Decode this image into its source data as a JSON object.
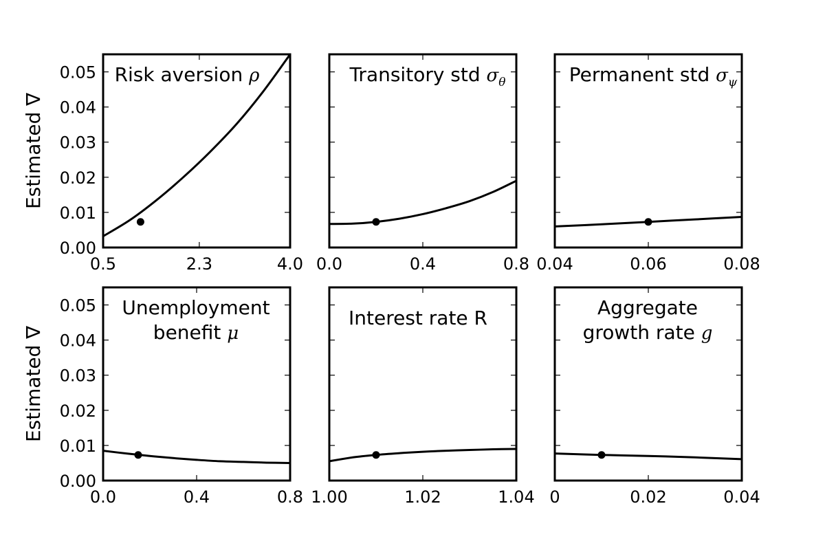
{
  "chart_data": [
    {
      "type": "line",
      "title": "Risk aversion",
      "title_symbol": "ρ",
      "title_subscript": "",
      "ylabel": "Estimated ∇",
      "xlim": [
        0.5,
        4.0
      ],
      "ylim": [
        0.0,
        0.055
      ],
      "xticks": [
        0.5,
        2.3,
        4.0
      ],
      "xtick_labels": [
        "0.5",
        "2.3",
        "4.0"
      ],
      "yticks": [
        0.0,
        0.01,
        0.02,
        0.03,
        0.04,
        0.05
      ],
      "ytick_labels": [
        "0.00",
        "0.01",
        "0.02",
        "0.03",
        "0.04",
        "0.05"
      ],
      "x": [
        0.5,
        1.0,
        1.5,
        2.0,
        2.5,
        3.0,
        3.5,
        4.0
      ],
      "y": [
        0.0032,
        0.0078,
        0.0135,
        0.02,
        0.0272,
        0.0352,
        0.0445,
        0.055
      ],
      "marker": {
        "x": 1.2,
        "y": 0.0073
      }
    },
    {
      "type": "line",
      "title": "Transitory std",
      "title_symbol": "σ",
      "title_subscript": "θ",
      "ylabel": "",
      "xlim": [
        0.0,
        0.8
      ],
      "ylim": [
        0.0,
        0.055
      ],
      "xticks": [
        0.0,
        0.4,
        0.8
      ],
      "xtick_labels": [
        "0.0",
        "0.4",
        "0.8"
      ],
      "yticks": [
        0.0,
        0.01,
        0.02,
        0.03,
        0.04,
        0.05
      ],
      "ytick_labels": [],
      "x": [
        0.0,
        0.1,
        0.2,
        0.3,
        0.4,
        0.5,
        0.6,
        0.7,
        0.8
      ],
      "y": [
        0.0067,
        0.0068,
        0.0073,
        0.0082,
        0.0095,
        0.0112,
        0.0132,
        0.0158,
        0.019
      ],
      "marker": {
        "x": 0.2,
        "y": 0.0073
      }
    },
    {
      "type": "line",
      "title": "Permanent std",
      "title_symbol": "σ",
      "title_subscript": "ψ",
      "ylabel": "",
      "xlim": [
        0.04,
        0.08
      ],
      "ylim": [
        0.0,
        0.055
      ],
      "xticks": [
        0.04,
        0.06,
        0.08
      ],
      "xtick_labels": [
        "0.04",
        "0.06",
        "0.08"
      ],
      "yticks": [
        0.0,
        0.01,
        0.02,
        0.03,
        0.04,
        0.05
      ],
      "ytick_labels": [],
      "x": [
        0.04,
        0.05,
        0.06,
        0.07,
        0.08
      ],
      "y": [
        0.006,
        0.0066,
        0.0073,
        0.008,
        0.0087
      ],
      "marker": {
        "x": 0.06,
        "y": 0.0073
      }
    },
    {
      "type": "line",
      "title": "Unemployment",
      "title_line2": "benefit",
      "title_symbol": "μ",
      "title_subscript": "",
      "ylabel": "Estimated ∇",
      "xlim": [
        0.0,
        0.8
      ],
      "ylim": [
        0.0,
        0.055
      ],
      "xticks": [
        0.0,
        0.4,
        0.8
      ],
      "xtick_labels": [
        "0.0",
        "0.4",
        "0.8"
      ],
      "yticks": [
        0.0,
        0.01,
        0.02,
        0.03,
        0.04,
        0.05
      ],
      "ytick_labels": [
        "0.00",
        "0.01",
        "0.02",
        "0.03",
        "0.04",
        "0.05"
      ],
      "x": [
        0.0,
        0.1,
        0.2,
        0.3,
        0.4,
        0.5,
        0.6,
        0.7,
        0.8
      ],
      "y": [
        0.0085,
        0.0077,
        0.007,
        0.0064,
        0.0059,
        0.0055,
        0.0053,
        0.0051,
        0.005
      ],
      "marker": {
        "x": 0.15,
        "y": 0.0073
      }
    },
    {
      "type": "line",
      "title": "Interest rate R",
      "title_symbol": "",
      "title_subscript": "",
      "ylabel": "",
      "xlim": [
        1.0,
        1.04
      ],
      "ylim": [
        0.0,
        0.055
      ],
      "xticks": [
        1.0,
        1.02,
        1.04
      ],
      "xtick_labels": [
        "1.00",
        "1.02",
        "1.04"
      ],
      "yticks": [
        0.0,
        0.01,
        0.02,
        0.03,
        0.04,
        0.05
      ],
      "ytick_labels": [],
      "x": [
        1.0,
        1.005,
        1.01,
        1.015,
        1.02,
        1.025,
        1.03,
        1.035,
        1.04
      ],
      "y": [
        0.0055,
        0.0066,
        0.0073,
        0.0078,
        0.0082,
        0.0085,
        0.0087,
        0.0089,
        0.009
      ],
      "marker": {
        "x": 1.01,
        "y": 0.0073
      }
    },
    {
      "type": "line",
      "title": "Aggregate",
      "title_line2": "growth rate",
      "title_symbol": "g",
      "title_subscript": "",
      "ylabel": "",
      "xlim": [
        0.0,
        0.04
      ],
      "ylim": [
        0.0,
        0.055
      ],
      "xticks": [
        0.0,
        0.02,
        0.04
      ],
      "xtick_labels": [
        "0",
        "0.02",
        "0.04"
      ],
      "yticks": [
        0.0,
        0.01,
        0.02,
        0.03,
        0.04,
        0.05
      ],
      "ytick_labels": [],
      "x": [
        0.0,
        0.01,
        0.02,
        0.03,
        0.04
      ],
      "y": [
        0.0077,
        0.0073,
        0.007,
        0.0066,
        0.0061
      ],
      "marker": {
        "x": 0.01,
        "y": 0.0073
      }
    }
  ]
}
